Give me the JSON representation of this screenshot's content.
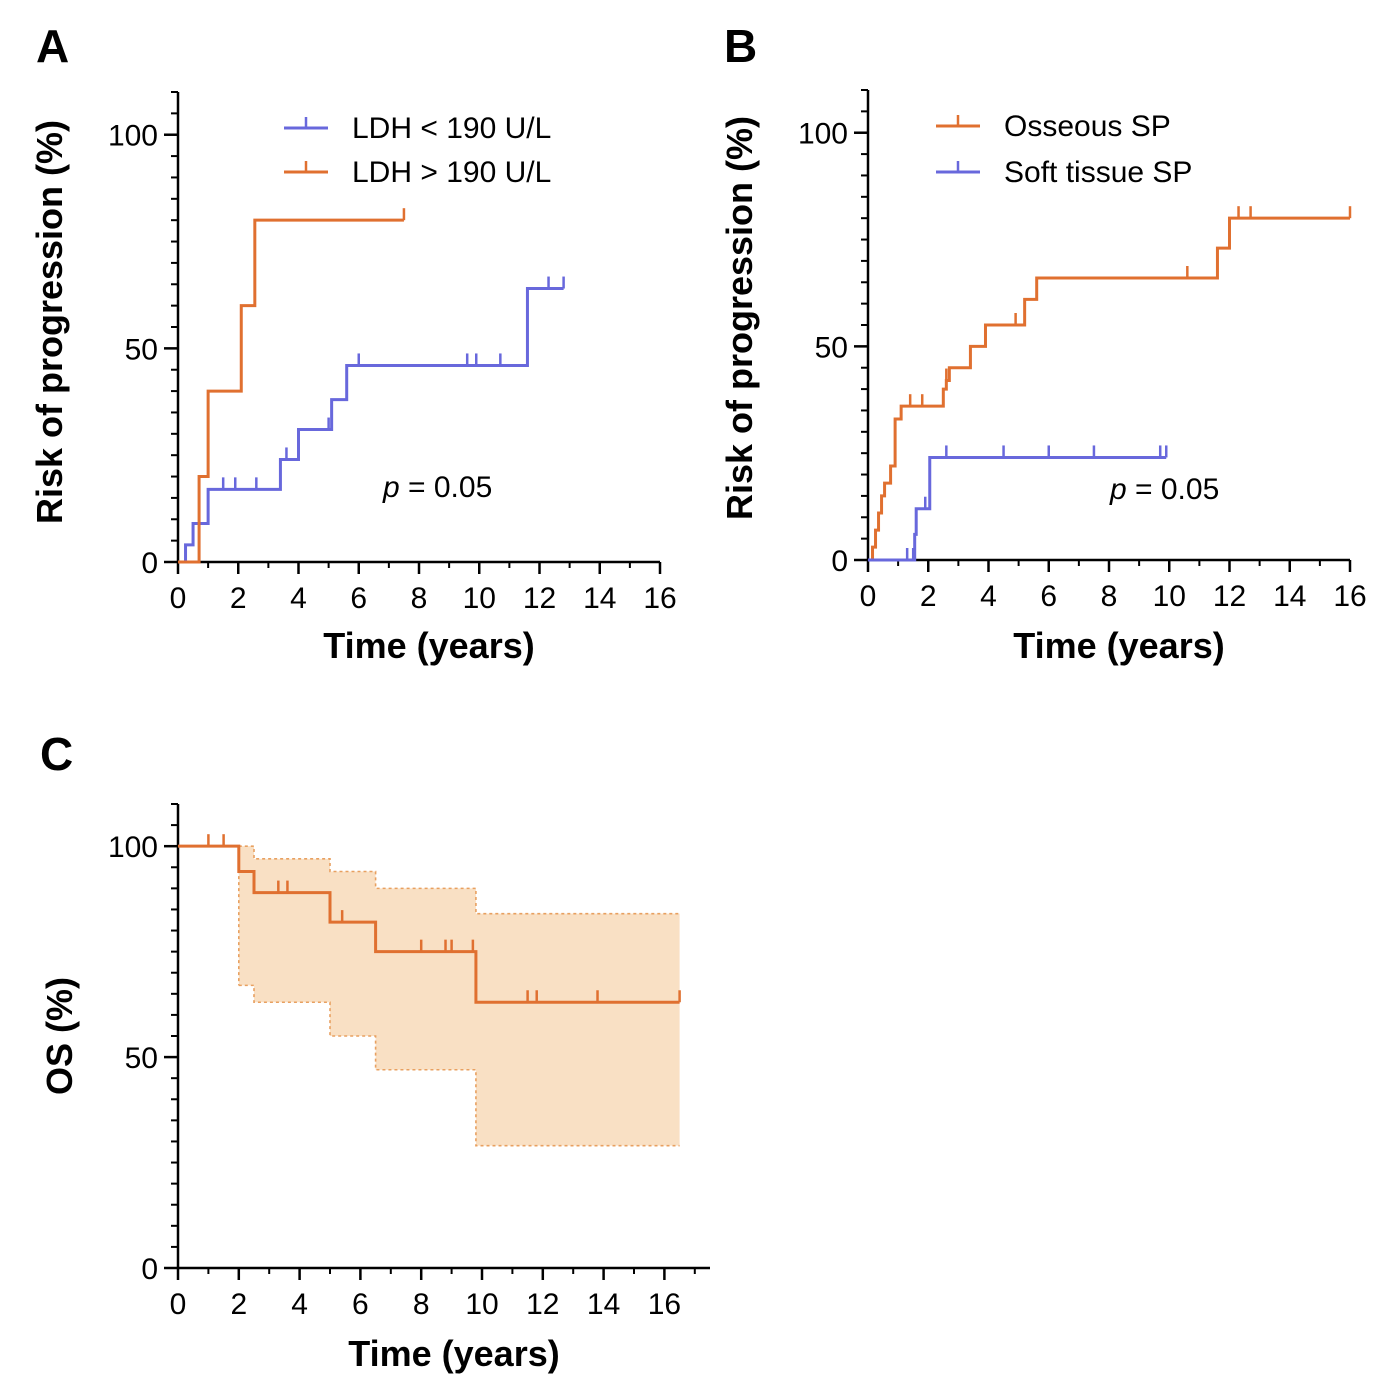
{
  "chart_data": [
    {
      "panel": "A",
      "type": "line",
      "step": true,
      "xlabel": "Time (years)",
      "ylabel": "Risk of progression (%)",
      "xlim": [
        0,
        16
      ],
      "ylim": [
        0,
        110
      ],
      "xticks": [
        "0",
        "2",
        "4",
        "6",
        "8",
        "10",
        "12",
        "14",
        "16"
      ],
      "yticks": [
        "0",
        "50",
        "100"
      ],
      "annotation": {
        "italic": "p",
        "text": " = 0.05"
      },
      "legend_position": "top-right",
      "series": [
        {
          "name": "LDH < 190 U/L",
          "color": "#6868dc",
          "points": [
            [
              0,
              0
            ],
            [
              0.25,
              4
            ],
            [
              0.5,
              9
            ],
            [
              1.0,
              17
            ],
            [
              3.4,
              24
            ],
            [
              4.0,
              31
            ],
            [
              5.1,
              38
            ],
            [
              5.6,
              46
            ],
            [
              11.6,
              64
            ],
            [
              12.8,
              64
            ]
          ],
          "censored": [
            [
              1.5,
              17
            ],
            [
              1.9,
              17
            ],
            [
              2.6,
              17
            ],
            [
              3.6,
              24
            ],
            [
              5.0,
              31
            ],
            [
              6.0,
              46
            ],
            [
              9.6,
              46
            ],
            [
              9.9,
              46
            ],
            [
              10.7,
              46
            ],
            [
              12.3,
              64
            ],
            [
              12.8,
              64
            ]
          ]
        },
        {
          "name": "LDH > 190 U/L",
          "color": "#e07030",
          "points": [
            [
              0,
              0
            ],
            [
              0.65,
              0
            ],
            [
              0.7,
              20
            ],
            [
              1.0,
              40
            ],
            [
              2.1,
              60
            ],
            [
              2.55,
              80
            ],
            [
              7.5,
              80
            ]
          ],
          "censored": [
            [
              7.5,
              80
            ]
          ]
        }
      ]
    },
    {
      "panel": "B",
      "type": "line",
      "step": true,
      "xlabel": "Time (years)",
      "ylabel": "Risk of progression (%)",
      "xlim": [
        0,
        16
      ],
      "ylim": [
        0,
        110
      ],
      "xticks": [
        "0",
        "2",
        "4",
        "6",
        "8",
        "10",
        "12",
        "14",
        "16"
      ],
      "yticks": [
        "0",
        "50",
        "100"
      ],
      "annotation": {
        "italic": "p",
        "text": " = 0.05"
      },
      "legend_position": "top-right",
      "series": [
        {
          "name": "Osseous SP",
          "color": "#e07030",
          "points": [
            [
              0,
              0
            ],
            [
              0.15,
              3
            ],
            [
              0.25,
              7
            ],
            [
              0.35,
              11
            ],
            [
              0.45,
              15
            ],
            [
              0.55,
              18
            ],
            [
              0.75,
              22
            ],
            [
              0.9,
              33
            ],
            [
              1.1,
              36
            ],
            [
              2.5,
              40
            ],
            [
              2.6,
              42
            ],
            [
              2.7,
              45
            ],
            [
              3.4,
              50
            ],
            [
              3.9,
              55
            ],
            [
              5.2,
              61
            ],
            [
              5.6,
              66
            ],
            [
              11.6,
              73
            ],
            [
              12.0,
              80
            ],
            [
              16,
              80
            ]
          ],
          "censored": [
            [
              1.4,
              36
            ],
            [
              1.8,
              36
            ],
            [
              2.6,
              42
            ],
            [
              4.9,
              55
            ],
            [
              10.6,
              66
            ],
            [
              12.3,
              80
            ],
            [
              12.7,
              80
            ],
            [
              16,
              80
            ]
          ]
        },
        {
          "name": "Soft tissue SP",
          "color": "#6868dc",
          "points": [
            [
              0,
              0
            ],
            [
              1.5,
              0
            ],
            [
              1.55,
              6
            ],
            [
              1.6,
              12
            ],
            [
              2.05,
              24
            ],
            [
              9.9,
              24
            ]
          ],
          "censored": [
            [
              1.3,
              0
            ],
            [
              1.5,
              0
            ],
            [
              1.9,
              12
            ],
            [
              2.6,
              24
            ],
            [
              4.5,
              24
            ],
            [
              6.0,
              24
            ],
            [
              7.5,
              24
            ],
            [
              9.7,
              24
            ],
            [
              9.9,
              24
            ]
          ]
        }
      ]
    },
    {
      "panel": "C",
      "type": "line",
      "step": true,
      "xlabel": "Time (years)",
      "ylabel": "OS (%)",
      "xlim": [
        0,
        17.5
      ],
      "ylim": [
        0,
        110
      ],
      "xticks": [
        "0",
        "2",
        "4",
        "6",
        "8",
        "10",
        "12",
        "14",
        "16"
      ],
      "yticks": [
        "0",
        "50",
        "100"
      ],
      "series": [
        {
          "name": "",
          "color": "#e07030",
          "points": [
            [
              0,
              100
            ],
            [
              2.0,
              94
            ],
            [
              2.5,
              89
            ],
            [
              5.0,
              82
            ],
            [
              6.5,
              75
            ],
            [
              9.8,
              63
            ],
            [
              16.5,
              63
            ]
          ],
          "censored": [
            [
              1.0,
              100
            ],
            [
              1.5,
              100
            ],
            [
              3.3,
              89
            ],
            [
              3.6,
              89
            ],
            [
              5.4,
              82
            ],
            [
              8.0,
              75
            ],
            [
              8.8,
              75
            ],
            [
              9.0,
              75
            ],
            [
              9.7,
              75
            ],
            [
              11.5,
              63
            ],
            [
              11.8,
              63
            ],
            [
              13.8,
              63
            ],
            [
              16.5,
              63
            ]
          ]
        }
      ],
      "confidence_band": {
        "color": "#f9e0c4",
        "upper": [
          [
            2.0,
            100
          ],
          [
            2.5,
            97
          ],
          [
            5.0,
            94
          ],
          [
            6.5,
            90
          ],
          [
            9.8,
            84
          ],
          [
            16.5,
            84
          ]
        ],
        "lower": [
          [
            2.0,
            67
          ],
          [
            2.5,
            63
          ],
          [
            5.0,
            55
          ],
          [
            6.5,
            47
          ],
          [
            9.8,
            29
          ],
          [
            16.5,
            29
          ]
        ]
      }
    }
  ]
}
